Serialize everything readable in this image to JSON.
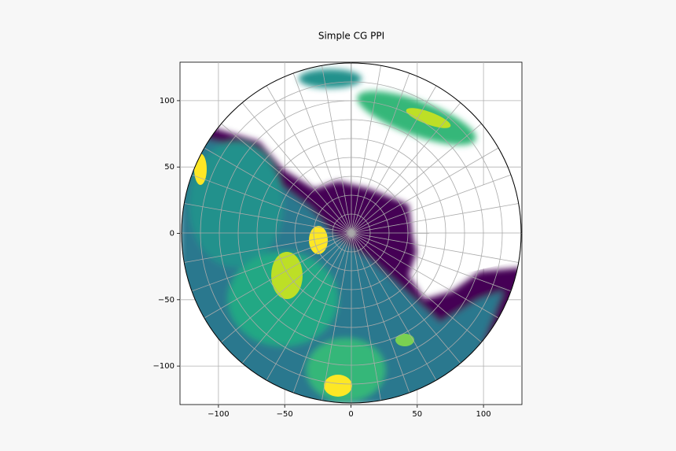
{
  "chart_data": {
    "type": "ppi",
    "title": "Simple CG PPI",
    "xlim": [
      -129,
      129
    ],
    "ylim": [
      -129,
      129
    ],
    "xticks": [
      {
        "value": -100,
        "label": "−100"
      },
      {
        "value": -50,
        "label": "−50"
      },
      0,
      50,
      100
    ],
    "yticks": [
      {
        "value": -100,
        "label": "−100"
      },
      {
        "value": -50,
        "label": "−50"
      },
      0,
      50,
      100
    ],
    "grid": true
  }
}
